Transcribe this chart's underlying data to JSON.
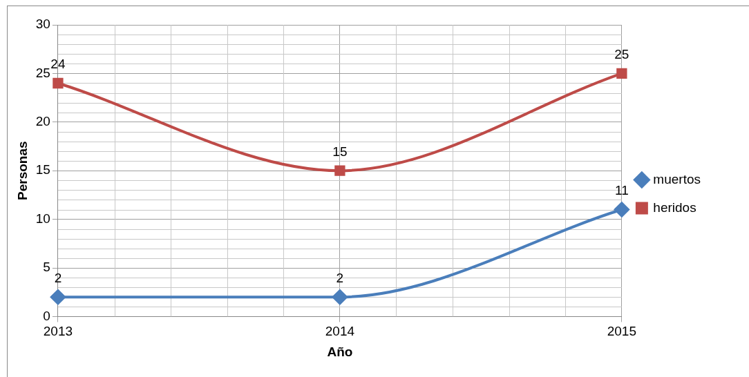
{
  "chart_data": {
    "type": "line",
    "xlabel": "Año",
    "ylabel": "Personas",
    "categories": [
      "2013",
      "2014",
      "2015"
    ],
    "series": [
      {
        "name": "muertos",
        "color": "#4a7ebb",
        "values": [
          2,
          2,
          11
        ],
        "marker": "diamond"
      },
      {
        "name": "heridos",
        "color": "#be4b48",
        "values": [
          24,
          15,
          25
        ],
        "marker": "square"
      }
    ],
    "ylim": [
      0,
      30
    ],
    "yticks": [
      0,
      5,
      10,
      15,
      20,
      25,
      30
    ],
    "grid": true,
    "legend": "right",
    "data_labels": true
  }
}
